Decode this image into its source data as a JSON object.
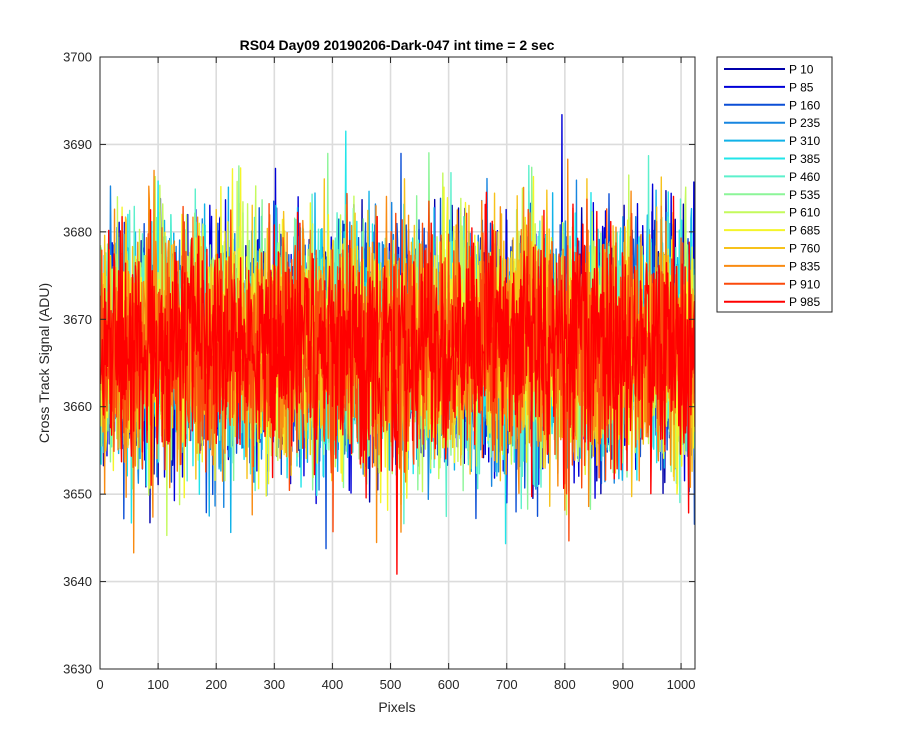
{
  "chart_data": {
    "type": "line",
    "title": "RS04 Day09 20190206-Dark-047 int time = 2 sec",
    "xlabel": "Pixels",
    "ylabel": "Cross Track Signal (ADU)",
    "xlim": [
      0,
      1024
    ],
    "ylim": [
      3630,
      3700
    ],
    "xticks": [
      0,
      100,
      200,
      300,
      400,
      500,
      600,
      700,
      800,
      900,
      1000
    ],
    "yticks": [
      3630,
      3640,
      3650,
      3660,
      3670,
      3680,
      3690,
      3700
    ],
    "grid": true,
    "legend_position": "outside-top-right",
    "noise_profile": {
      "mean": 3667,
      "sigma": 6.5,
      "x_start": 1,
      "x_end": 1024
    },
    "series": [
      {
        "name": "P 10",
        "color": "#0000AA"
      },
      {
        "name": "P 85",
        "color": "#0000D8"
      },
      {
        "name": "P 160",
        "color": "#0B4FD6"
      },
      {
        "name": "P 235",
        "color": "#1785E0"
      },
      {
        "name": "P 310",
        "color": "#11B2E8"
      },
      {
        "name": "P 385",
        "color": "#21E5E9"
      },
      {
        "name": "P 460",
        "color": "#5CF0CC"
      },
      {
        "name": "P 535",
        "color": "#8CF598"
      },
      {
        "name": "P 610",
        "color": "#C4FA5C"
      },
      {
        "name": "P 685",
        "color": "#F5F52A"
      },
      {
        "name": "P 760",
        "color": "#F7C21B"
      },
      {
        "name": "P 835",
        "color": "#F98B12"
      },
      {
        "name": "P 910",
        "color": "#FB4A0C"
      },
      {
        "name": "P 985",
        "color": "#FF0000"
      }
    ]
  }
}
